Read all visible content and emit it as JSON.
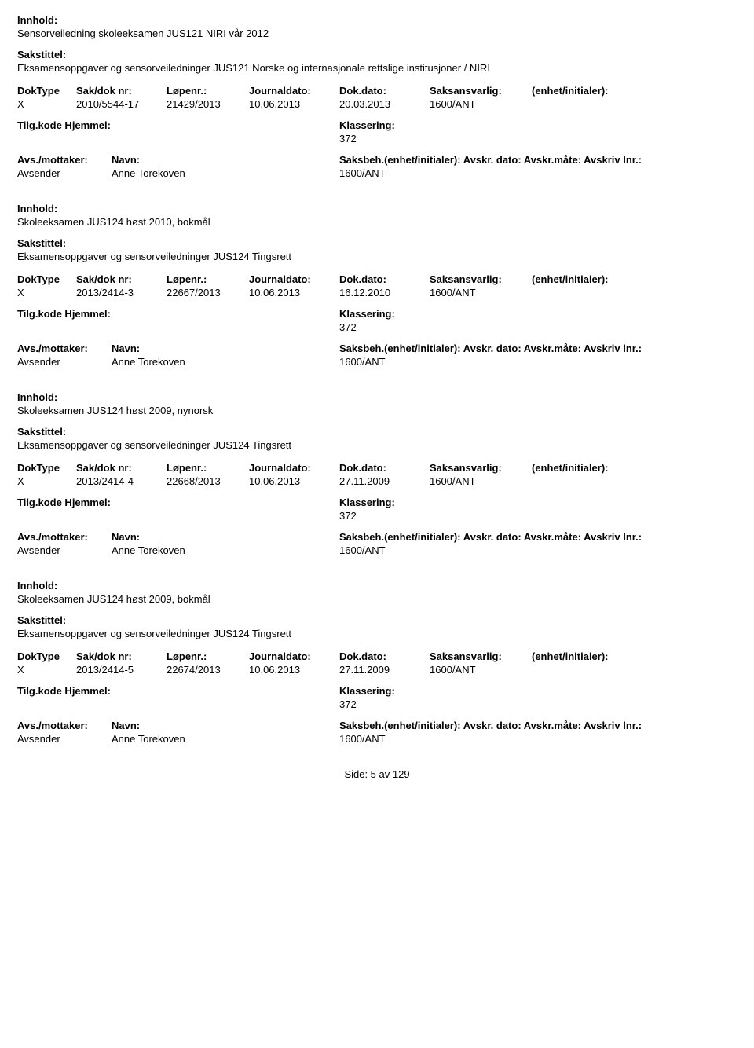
{
  "labels": {
    "innhold": "Innhold:",
    "sakstittel": "Sakstittel:",
    "doktype": "DokType",
    "saknr": "Sak/dok nr:",
    "lopenr": "Løpenr.:",
    "jdato": "Journaldato:",
    "ddato": "Dok.dato:",
    "saksansv": "Saksansvarlig:",
    "enhet": "(enhet/initialer):",
    "tilgkode": "Tilg.kode",
    "hjemmel": "Hjemmel:",
    "klassering": "Klassering:",
    "avsmottaker": "Avs./mottaker:",
    "navn": "Navn:",
    "saksbeh": "Saksbeh.(enhet/initialer): Avskr. dato: Avskr.måte: Avskriv lnr.:",
    "avsender": "Avsender"
  },
  "records": [
    {
      "innhold": "Sensorveiledning skoleeksamen JUS121 NIRI vår 2012",
      "sakstittel": "Eksamensoppgaver og sensorveiledninger JUS121 Norske og internasjonale rettslige institusjoner / NIRI",
      "doktype": "X",
      "saknr": "2010/5544-17",
      "lopenr": "21429/2013",
      "jdato": "10.06.2013",
      "ddato": "20.03.2013",
      "saksansv": "1600/ANT",
      "klassering": "372",
      "sender_name": "Anne Torekoven",
      "sender_code": "1600/ANT"
    },
    {
      "innhold": "Skoleeksamen JUS124 høst 2010, bokmål",
      "sakstittel": "Eksamensoppgaver og sensorveiledninger JUS124 Tingsrett",
      "doktype": "X",
      "saknr": "2013/2414-3",
      "lopenr": "22667/2013",
      "jdato": "10.06.2013",
      "ddato": "16.12.2010",
      "saksansv": "1600/ANT",
      "klassering": "372",
      "sender_name": "Anne Torekoven",
      "sender_code": "1600/ANT"
    },
    {
      "innhold": "Skoleeksamen JUS124 høst 2009, nynorsk",
      "sakstittel": "Eksamensoppgaver og sensorveiledninger JUS124 Tingsrett",
      "doktype": "X",
      "saknr": "2013/2414-4",
      "lopenr": "22668/2013",
      "jdato": "10.06.2013",
      "ddato": "27.11.2009",
      "saksansv": "1600/ANT",
      "klassering": "372",
      "sender_name": "Anne Torekoven",
      "sender_code": "1600/ANT"
    },
    {
      "innhold": "Skoleeksamen JUS124 høst 2009, bokmål",
      "sakstittel": "Eksamensoppgaver og sensorveiledninger JUS124 Tingsrett",
      "doktype": "X",
      "saknr": "2013/2414-5",
      "lopenr": "22674/2013",
      "jdato": "10.06.2013",
      "ddato": "27.11.2009",
      "saksansv": "1600/ANT",
      "klassering": "372",
      "sender_name": "Anne Torekoven",
      "sender_code": "1600/ANT"
    }
  ],
  "footer": "Side: 5 av 129"
}
